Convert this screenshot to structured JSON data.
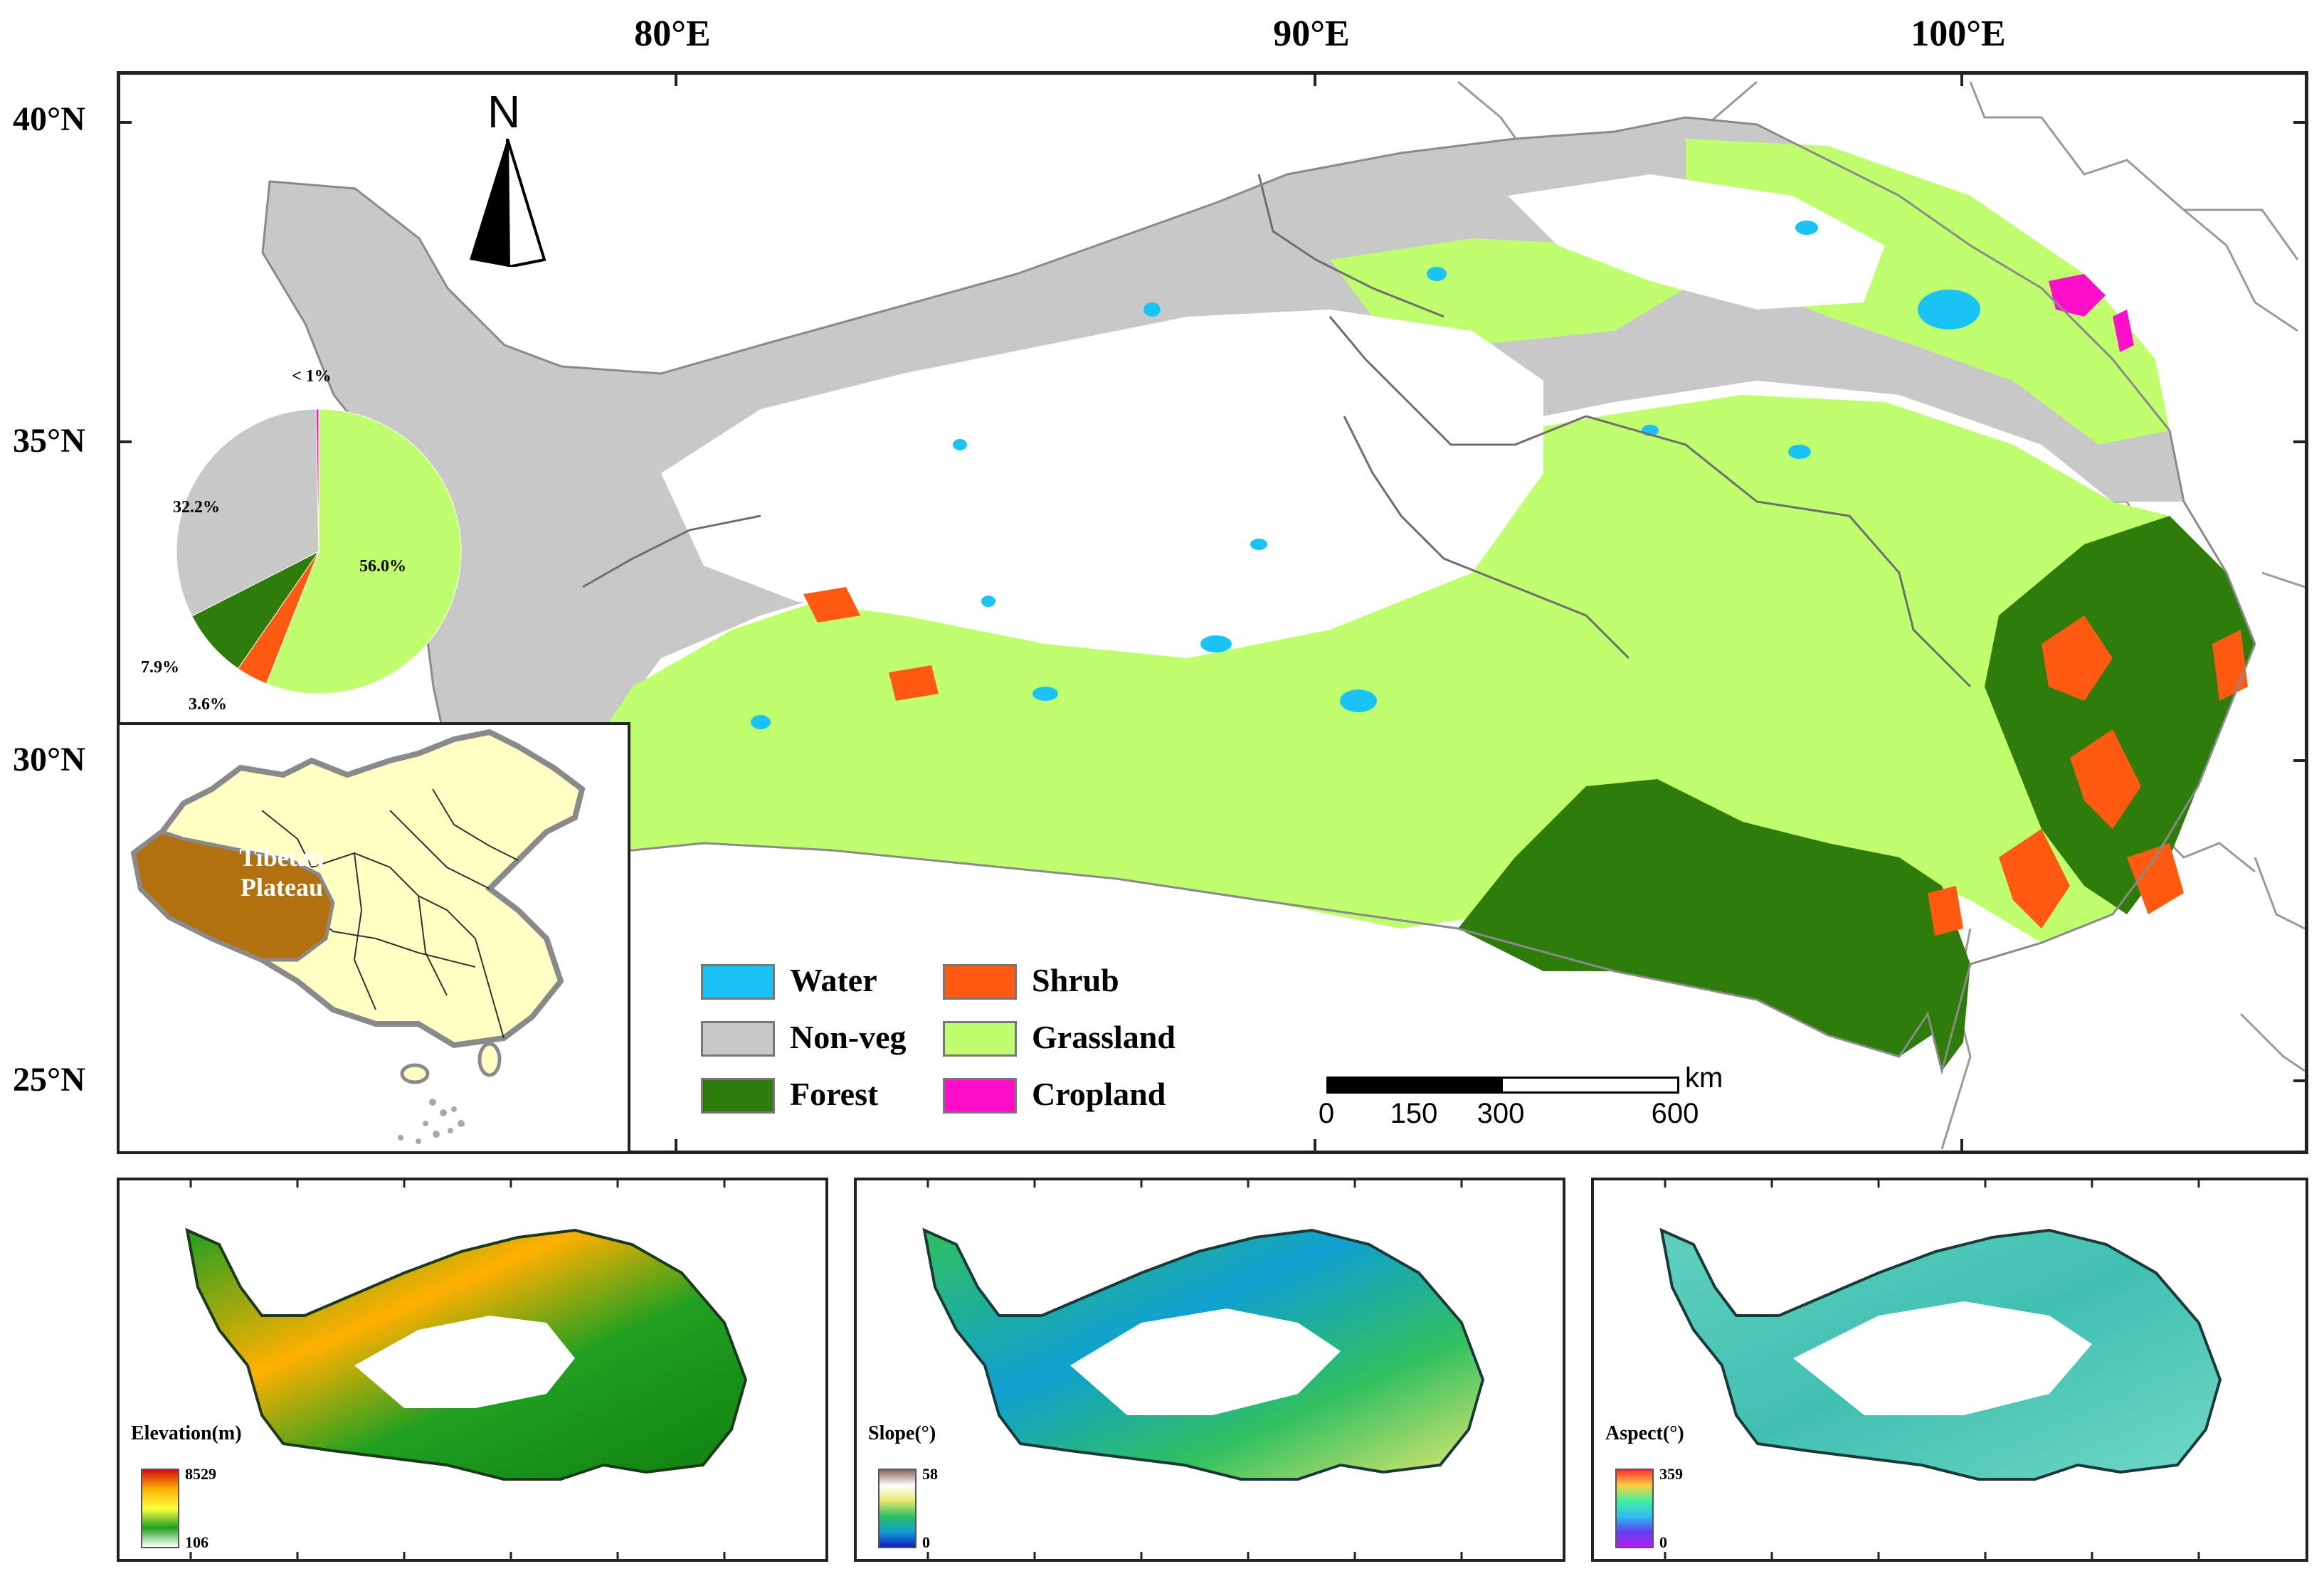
{
  "axes": {
    "lon_labels": [
      "80°E",
      "90°E",
      "100°E"
    ],
    "lat_labels": [
      "40°N",
      "35°N",
      "30°N",
      "25°N"
    ]
  },
  "north_arrow": {
    "label": "N"
  },
  "legend": {
    "items": [
      {
        "label": "Water",
        "color": "#19c3f5"
      },
      {
        "label": "Non-veg",
        "color": "#c8c8c8"
      },
      {
        "label": "Forest",
        "color": "#2e7c0a"
      },
      {
        "label": "Shrub",
        "color": "#ff5a10"
      },
      {
        "label": "Grassland",
        "color": "#bfff6e"
      },
      {
        "label": "Cropland",
        "color": "#ff10c8"
      }
    ]
  },
  "scale_bar": {
    "unit": "km",
    "ticks": [
      "0",
      "150",
      "300",
      "600"
    ]
  },
  "inset": {
    "label_line1": "Tibetan",
    "label_line2": "Plateau",
    "highlight_color": "#b2700e",
    "country_color": "#ffffc4"
  },
  "chart_data": {
    "type": "pie",
    "slices": [
      {
        "label": "Grassland",
        "value": 56.0,
        "display": "56.0%",
        "color": "#bfff6e"
      },
      {
        "label": "Shrub",
        "value": 3.6,
        "display": "3.6%",
        "color": "#ff5a10"
      },
      {
        "label": "Forest",
        "value": 7.9,
        "display": "7.9%",
        "color": "#2e7c0a"
      },
      {
        "label": "Non-veg",
        "value": 32.2,
        "display": "32.2%",
        "color": "#c8c8c8"
      },
      {
        "label": "Cropland",
        "value": 0.3,
        "display": "< 1%",
        "color": "#ff10c8"
      }
    ]
  },
  "panels": [
    {
      "title": "Elevation(m)",
      "max": "8529",
      "min": "106",
      "gradient": [
        "#d01010",
        "#ffb000",
        "#ffff40",
        "#20a020",
        "#ffffff"
      ]
    },
    {
      "title": "Slope(°)",
      "max": "58",
      "min": "0",
      "gradient": [
        "#8a6a60",
        "#ffffff",
        "#e8e870",
        "#30c060",
        "#10a0d0",
        "#1020c0"
      ]
    },
    {
      "title": "Aspect(°)",
      "max": "359",
      "min": "0",
      "gradient": [
        "#ff3030",
        "#ffd040",
        "#40f0a0",
        "#30c0f0",
        "#6040f0",
        "#b020f0"
      ]
    }
  ]
}
